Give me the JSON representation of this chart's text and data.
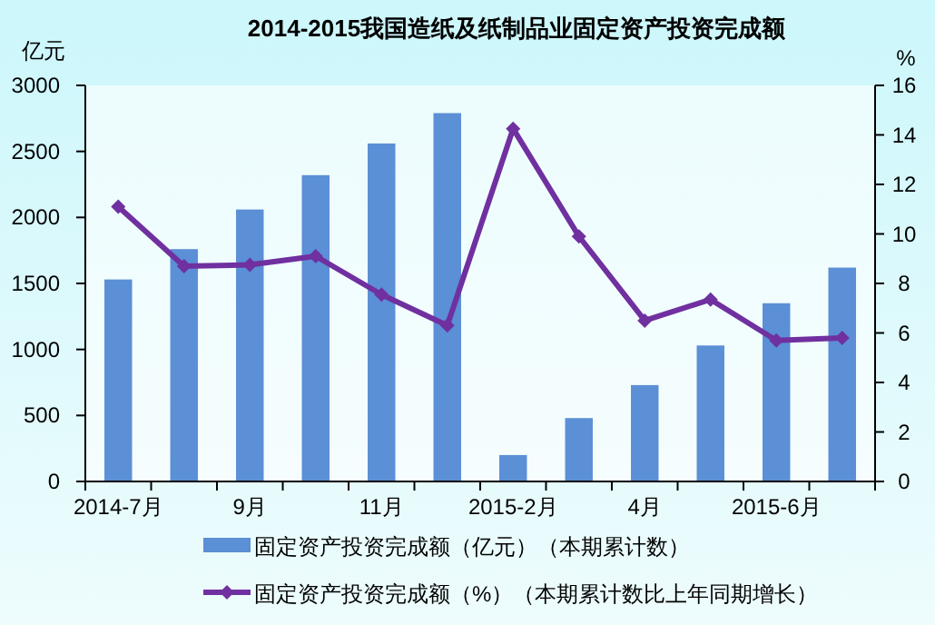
{
  "chart_data": {
    "type": "bar",
    "title": "2014-2015我国造纸及纸制品业固定资产投资完成额",
    "ylabel": "亿元",
    "y2label": "%",
    "categories": [
      "2014-7月",
      null,
      "9月",
      null,
      "11月",
      null,
      "2015-2月",
      null,
      "4月",
      null,
      "2015-6月",
      null
    ],
    "series": [
      {
        "name": "固定资产投资完成额（亿元）（本期累计数）",
        "color": "#5b8fd6",
        "values": [
          1530,
          1760,
          2060,
          2320,
          2560,
          2790,
          200,
          480,
          730,
          1030,
          1350,
          1620
        ]
      },
      {
        "name": "固定资产投资完成额（%）（本期累计数比上年同期增长）",
        "type": "line",
        "axis": "y2",
        "color": "#7030a0",
        "marker": "diamond",
        "values": [
          11.1,
          8.7,
          8.75,
          9.1,
          7.55,
          6.3,
          14.25,
          9.9,
          6.5,
          7.35,
          5.7,
          5.8
        ]
      }
    ],
    "ylim": [
      0,
      3000
    ],
    "yticks": [
      0,
      500,
      1000,
      1500,
      2000,
      2500,
      3000
    ],
    "y2lim": [
      0,
      16
    ],
    "y2ticks": [
      0,
      2,
      4,
      6,
      8,
      10,
      12,
      14,
      16
    ],
    "grid": false,
    "legend": "bottom"
  }
}
